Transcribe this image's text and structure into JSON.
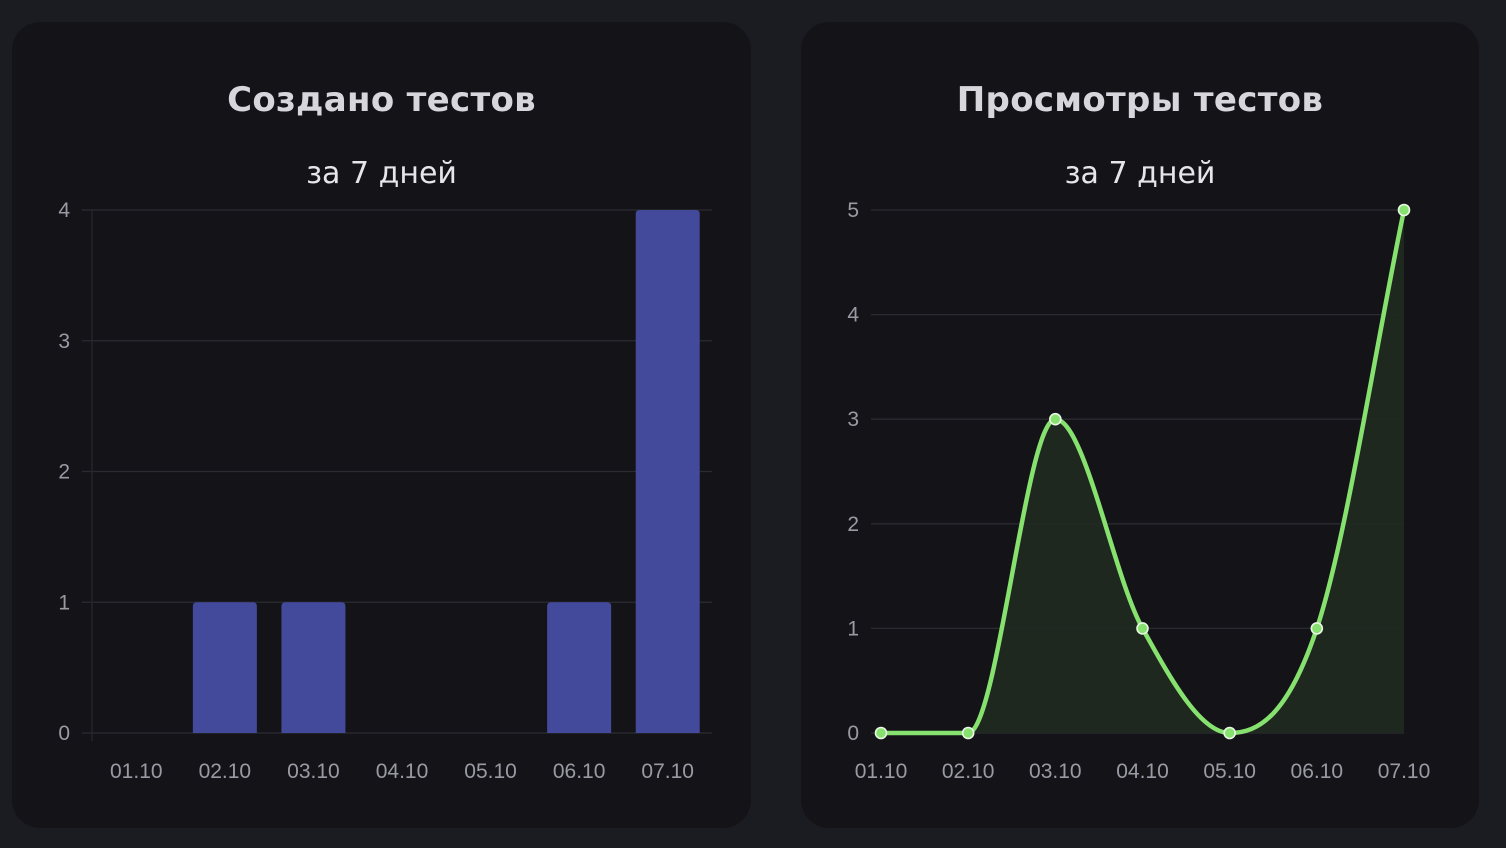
{
  "chart_data": [
    {
      "type": "bar",
      "title": "Создано тестов",
      "subtitle": "за 7 дней",
      "categories": [
        "01.10",
        "02.10",
        "03.10",
        "04.10",
        "05.10",
        "06.10",
        "07.10"
      ],
      "values": [
        0,
        1,
        1,
        0,
        0,
        1,
        4
      ],
      "ylim": [
        0,
        4
      ],
      "yticks": [
        0,
        1,
        2,
        3,
        4
      ],
      "grid": true,
      "color": "#434a9b"
    },
    {
      "type": "area",
      "title": "Просмотры тестов",
      "subtitle": "за 7 дней",
      "categories": [
        "01.10",
        "02.10",
        "03.10",
        "04.10",
        "05.10",
        "06.10",
        "07.10"
      ],
      "values": [
        0,
        0,
        3,
        1,
        0,
        1,
        5
      ],
      "ylim": [
        0,
        5
      ],
      "yticks": [
        0,
        1,
        2,
        3,
        4,
        5
      ],
      "grid": true,
      "color": "#86e16f",
      "fill_color": "#1f2a20"
    }
  ]
}
